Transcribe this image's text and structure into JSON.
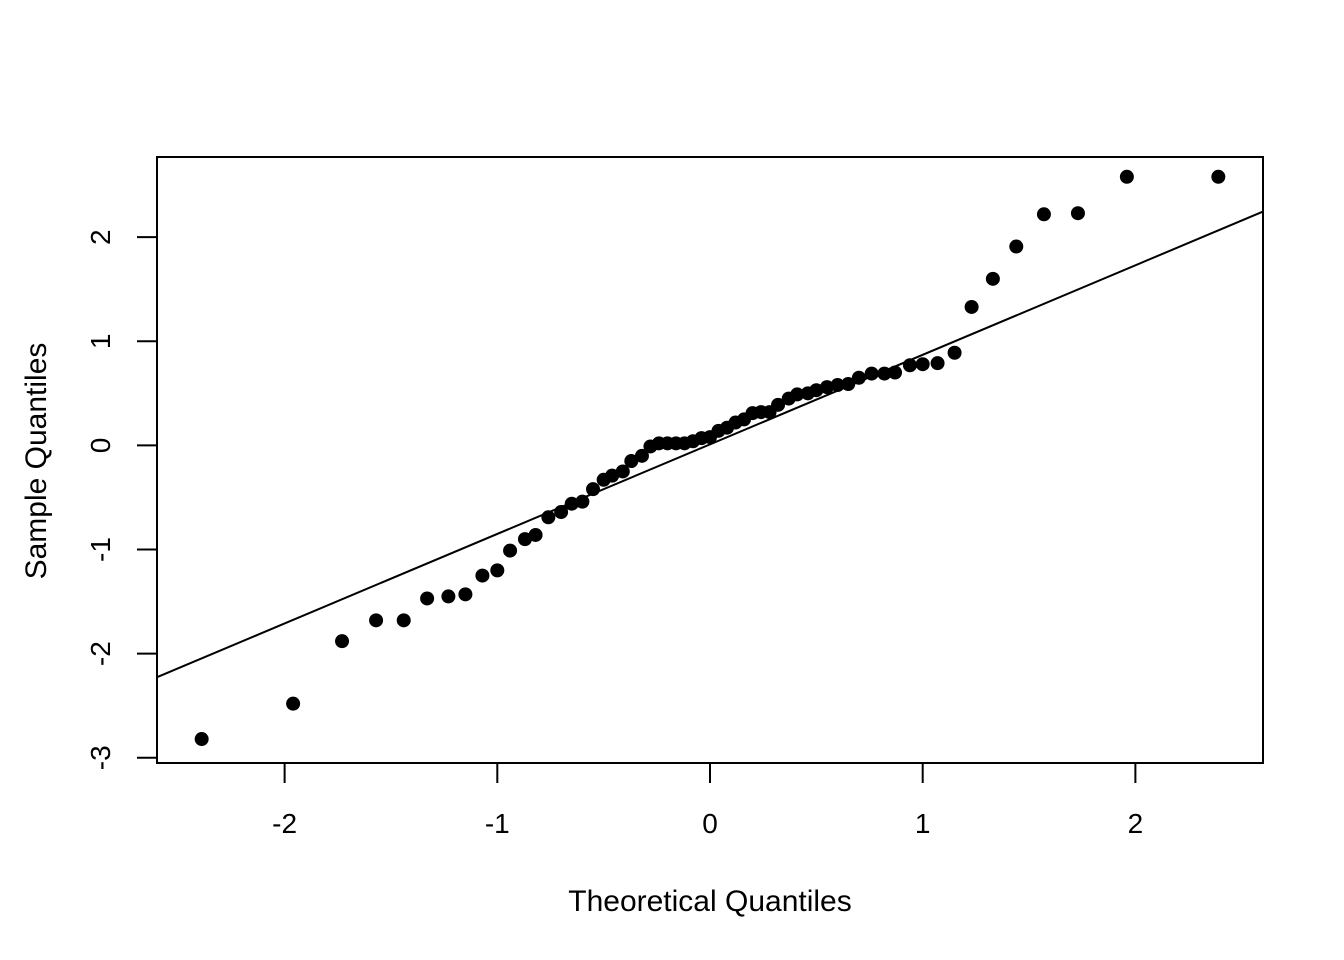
{
  "chart_data": {
    "type": "scatter",
    "title": "",
    "xlabel": "Theoretical Quantiles",
    "ylabel": "Sample Quantiles",
    "xlim": [
      -2.6,
      2.6
    ],
    "ylim": [
      -3.05,
      2.77
    ],
    "x_ticks": [
      -2,
      -1,
      0,
      1,
      2
    ],
    "y_ticks": [
      -3,
      -2,
      -1,
      0,
      1,
      2
    ],
    "grid": false,
    "legend": "none",
    "colors": {
      "points": "#000000",
      "line": "#000000",
      "frame": "#000000"
    },
    "reference_line": {
      "slope": 0.86,
      "intercept": 0.01
    },
    "series": [
      {
        "x": [
          -2.39,
          -1.96,
          -1.73,
          -1.57,
          -1.44,
          -1.33,
          -1.23,
          -1.15,
          -1.07,
          -1.0,
          -0.94,
          -0.87,
          -0.82,
          -0.76,
          -0.7,
          -0.65,
          -0.6,
          -0.55,
          -0.5,
          -0.46,
          -0.41,
          -0.37,
          -0.32,
          -0.28,
          -0.24,
          -0.2,
          -0.16,
          -0.12,
          -0.08,
          -0.04,
          0.0,
          0.04,
          0.08,
          0.12,
          0.16,
          0.2,
          0.24,
          0.28,
          0.32,
          0.37,
          0.41,
          0.46,
          0.5,
          0.55,
          0.6,
          0.65,
          0.7,
          0.76,
          0.82,
          0.87,
          0.94,
          1.0,
          1.07,
          1.15,
          1.23,
          1.33,
          1.44,
          1.57,
          1.73,
          1.96,
          2.39
        ],
        "y": [
          -2.82,
          -2.48,
          -1.88,
          -1.68,
          -1.68,
          -1.47,
          -1.45,
          -1.43,
          -1.25,
          -1.2,
          -1.01,
          -0.9,
          -0.86,
          -0.69,
          -0.64,
          -0.56,
          -0.54,
          -0.42,
          -0.33,
          -0.29,
          -0.25,
          -0.15,
          -0.1,
          -0.01,
          0.02,
          0.02,
          0.02,
          0.02,
          0.04,
          0.07,
          0.08,
          0.14,
          0.17,
          0.22,
          0.25,
          0.31,
          0.32,
          0.32,
          0.39,
          0.45,
          0.49,
          0.5,
          0.53,
          0.56,
          0.58,
          0.59,
          0.65,
          0.69,
          0.69,
          0.7,
          0.77,
          0.78,
          0.79,
          0.89,
          1.33,
          1.6,
          1.91,
          2.22,
          2.23,
          2.58,
          2.58
        ]
      }
    ]
  }
}
